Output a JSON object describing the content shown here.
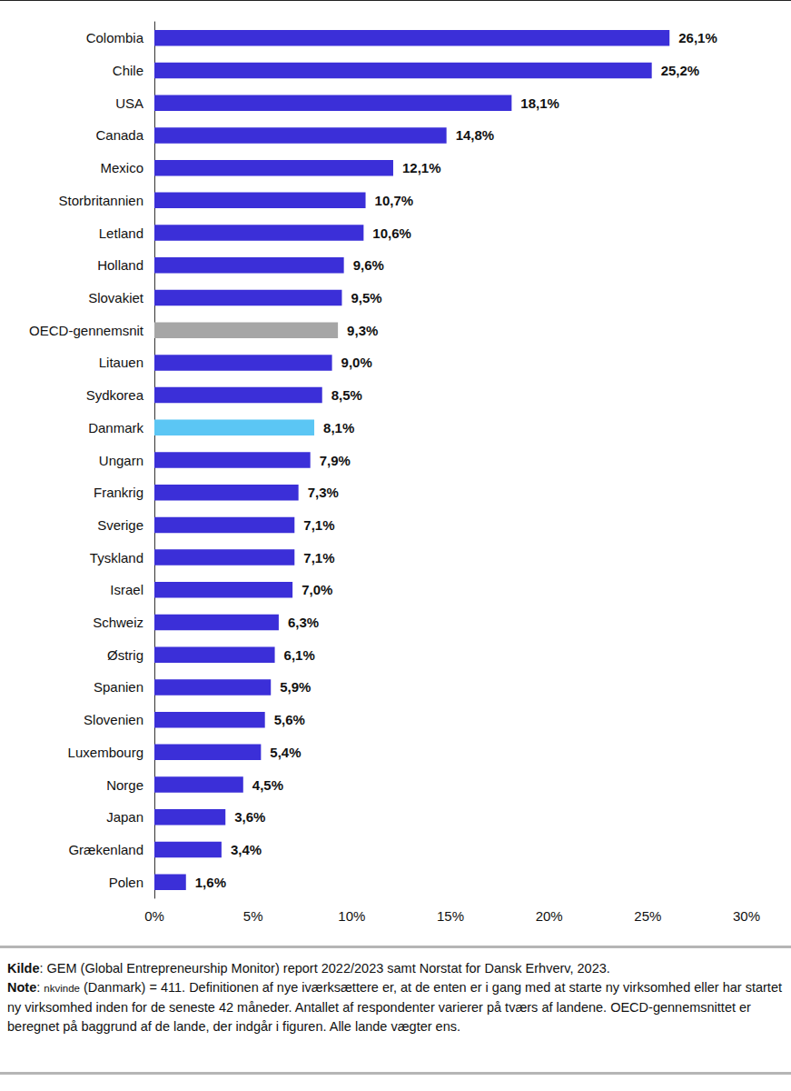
{
  "chart_data": {
    "type": "bar",
    "orientation": "horizontal",
    "categories": [
      "Colombia",
      "Chile",
      "USA",
      "Canada",
      "Mexico",
      "Storbritannien",
      "Letland",
      "Holland",
      "Slovakiet",
      "OECD-gennemsnit",
      "Litauen",
      "Sydkorea",
      "Danmark",
      "Ungarn",
      "Frankrig",
      "Sverige",
      "Tyskland",
      "Israel",
      "Schweiz",
      "Østrig",
      "Spanien",
      "Slovenien",
      "Luxembourg",
      "Norge",
      "Japan",
      "Grækenland",
      "Polen"
    ],
    "values": [
      26.1,
      25.2,
      18.1,
      14.8,
      12.1,
      10.7,
      10.6,
      9.6,
      9.5,
      9.3,
      9.0,
      8.5,
      8.1,
      7.9,
      7.3,
      7.1,
      7.1,
      7.0,
      6.3,
      6.1,
      5.9,
      5.6,
      5.4,
      4.5,
      3.6,
      3.4,
      1.6
    ],
    "value_labels": [
      "26,1%",
      "25,2%",
      "18,1%",
      "14,8%",
      "12,1%",
      "10,7%",
      "10,6%",
      "9,6%",
      "9,5%",
      "9,3%",
      "9,0%",
      "8,5%",
      "8,1%",
      "7,9%",
      "7,3%",
      "7,1%",
      "7,1%",
      "7,0%",
      "6,3%",
      "6,1%",
      "5,9%",
      "5,6%",
      "5,4%",
      "4,5%",
      "3,6%",
      "3,4%",
      "1,6%"
    ],
    "colors": [
      "#3b2fd8",
      "#3b2fd8",
      "#3b2fd8",
      "#3b2fd8",
      "#3b2fd8",
      "#3b2fd8",
      "#3b2fd8",
      "#3b2fd8",
      "#3b2fd8",
      "#a6a6a6",
      "#3b2fd8",
      "#3b2fd8",
      "#5bc6f4",
      "#3b2fd8",
      "#3b2fd8",
      "#3b2fd8",
      "#3b2fd8",
      "#3b2fd8",
      "#3b2fd8",
      "#3b2fd8",
      "#3b2fd8",
      "#3b2fd8",
      "#3b2fd8",
      "#3b2fd8",
      "#3b2fd8",
      "#3b2fd8",
      "#3b2fd8"
    ],
    "xlim": [
      0,
      30
    ],
    "xticks": [
      {
        "value": 0,
        "label": "0%"
      },
      {
        "value": 5,
        "label": "5%"
      },
      {
        "value": 10,
        "label": "10%"
      },
      {
        "value": 15,
        "label": "15%"
      },
      {
        "value": 20,
        "label": "20%"
      },
      {
        "value": 25,
        "label": "25%"
      },
      {
        "value": 30,
        "label": "30%"
      }
    ],
    "grid": false,
    "data_labels": true
  },
  "footer": {
    "source_label": "Kilde",
    "source": ": GEM (Global Entrepreneurship Monitor) report 2022/2023 samt Norstat for Dansk Erhverv, 2023.",
    "note_label": "Note",
    "note_colon": ": ",
    "note_small": "nkvinde",
    "note": " (Danmark) = 411. Definitionen af nye iværksættere er, at de enten er i gang med at starte ny virksomhed eller har startet ny virksomhed inden for de seneste 42 måneder. Antallet af respondenter varierer på tværs af landene. OECD-gennemsnittet er beregnet på baggrund af de lande, der indgår i figuren. Alle lande vægter ens."
  }
}
